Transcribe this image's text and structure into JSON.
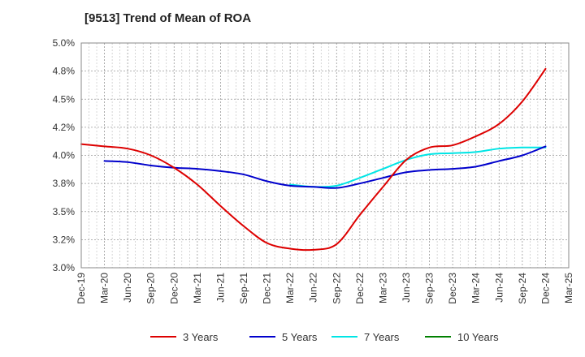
{
  "chart_data": {
    "type": "line",
    "title": "[9513]  Trend of Mean of ROA",
    "xlabel": "",
    "ylabel": "",
    "ylim": [
      3.0,
      5.0
    ],
    "yticks": [
      3.0,
      3.25,
      3.5,
      3.75,
      4.0,
      4.25,
      4.5,
      4.75,
      5.0
    ],
    "ytick_labels": [
      "3.0%",
      "3.2%",
      "3.5%",
      "3.8%",
      "4.0%",
      "4.2%",
      "4.5%",
      "4.8%",
      "5.0%"
    ],
    "categories": [
      "Dec-19",
      "Mar-20",
      "Jun-20",
      "Sep-20",
      "Dec-20",
      "Mar-21",
      "Jun-21",
      "Sep-21",
      "Dec-21",
      "Mar-22",
      "Jun-22",
      "Sep-22",
      "Dec-22",
      "Mar-23",
      "Jun-23",
      "Sep-23",
      "Dec-23",
      "Mar-24",
      "Jun-24",
      "Sep-24",
      "Dec-24",
      "Mar-25"
    ],
    "grid": true,
    "legend_position": "bottom",
    "series": [
      {
        "name": "3 Years",
        "color": "#dd0000",
        "values": [
          4.1,
          4.08,
          4.06,
          4.0,
          3.89,
          3.74,
          3.55,
          3.37,
          3.22,
          3.17,
          3.16,
          3.21,
          3.47,
          3.72,
          3.96,
          4.07,
          4.09,
          4.17,
          4.28,
          4.48,
          4.77,
          null
        ]
      },
      {
        "name": "5 Years",
        "color": "#0000cc",
        "values": [
          null,
          3.95,
          3.94,
          3.91,
          3.89,
          3.88,
          3.86,
          3.83,
          3.77,
          3.73,
          3.72,
          3.71,
          3.75,
          3.8,
          3.85,
          3.87,
          3.88,
          3.9,
          3.95,
          4.0,
          4.08,
          null
        ]
      },
      {
        "name": "7 Years",
        "color": "#00e5e5",
        "values": [
          null,
          null,
          null,
          null,
          null,
          null,
          null,
          null,
          null,
          3.74,
          3.72,
          3.73,
          3.8,
          3.88,
          3.96,
          4.01,
          4.02,
          4.03,
          4.06,
          4.07,
          4.07,
          null
        ]
      },
      {
        "name": "10 Years",
        "color": "#008000",
        "values": [
          null,
          null,
          null,
          null,
          null,
          null,
          null,
          null,
          null,
          null,
          null,
          null,
          null,
          null,
          null,
          null,
          null,
          null,
          null,
          null,
          null,
          null
        ]
      }
    ]
  }
}
